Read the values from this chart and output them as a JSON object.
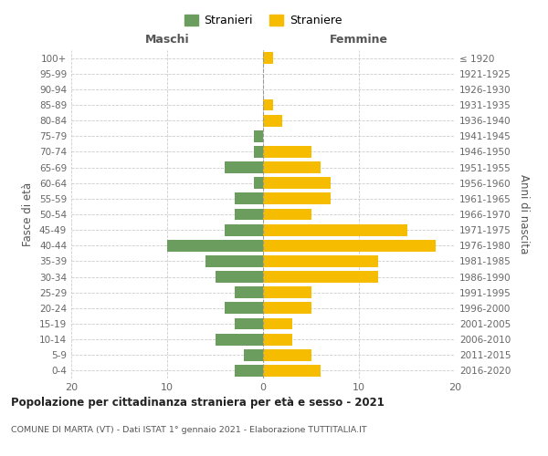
{
  "age_groups": [
    "0-4",
    "5-9",
    "10-14",
    "15-19",
    "20-24",
    "25-29",
    "30-34",
    "35-39",
    "40-44",
    "45-49",
    "50-54",
    "55-59",
    "60-64",
    "65-69",
    "70-74",
    "75-79",
    "80-84",
    "85-89",
    "90-94",
    "95-99",
    "100+"
  ],
  "birth_years": [
    "2016-2020",
    "2011-2015",
    "2006-2010",
    "2001-2005",
    "1996-2000",
    "1991-1995",
    "1986-1990",
    "1981-1985",
    "1976-1980",
    "1971-1975",
    "1966-1970",
    "1961-1965",
    "1956-1960",
    "1951-1955",
    "1946-1950",
    "1941-1945",
    "1936-1940",
    "1931-1935",
    "1926-1930",
    "1921-1925",
    "≤ 1920"
  ],
  "males": [
    3,
    2,
    5,
    3,
    4,
    3,
    5,
    6,
    10,
    4,
    3,
    3,
    1,
    4,
    1,
    1,
    0,
    0,
    0,
    0,
    0
  ],
  "females": [
    6,
    5,
    3,
    3,
    5,
    5,
    12,
    12,
    18,
    15,
    5,
    7,
    7,
    6,
    5,
    0,
    2,
    1,
    0,
    0,
    1
  ],
  "male_color": "#6b9e5e",
  "female_color": "#f5bc00",
  "background_color": "#ffffff",
  "grid_color": "#cccccc",
  "title": "Popolazione per cittadinanza straniera per età e sesso - 2021",
  "subtitle": "COMUNE DI MARTA (VT) - Dati ISTAT 1° gennaio 2021 - Elaborazione TUTTITALIA.IT",
  "xlabel_left": "Maschi",
  "xlabel_right": "Femmine",
  "ylabel_left": "Fasce di età",
  "ylabel_right": "Anni di nascita",
  "legend_stranieri": "Stranieri",
  "legend_straniere": "Straniere",
  "xlim": 20,
  "bar_height": 0.75
}
